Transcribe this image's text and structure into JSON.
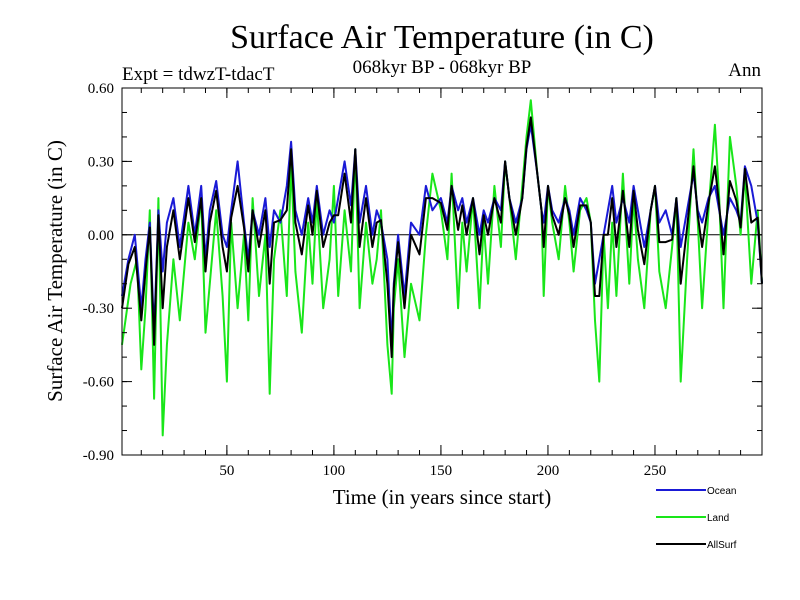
{
  "chart_data": {
    "type": "line",
    "title": "Surface Air Temperature (in C)",
    "subtitle_left": "Expt = tdwzT-tdacT",
    "subtitle_center": "068kyr BP - 068kyr BP",
    "subtitle_right": "Ann",
    "xlabel": "Time (in years since start)",
    "ylabel": "Surface Air Temperature (in C)",
    "xlim": [
      1,
      300
    ],
    "ylim": [
      -0.9,
      0.6
    ],
    "xticks": [
      50,
      100,
      150,
      200,
      250
    ],
    "xtick_labels": [
      "50",
      "100",
      "150",
      "200",
      "250"
    ],
    "yticks": [
      -0.9,
      -0.6,
      -0.3,
      0.0,
      0.3,
      0.6
    ],
    "ytick_labels": [
      "-0.90",
      "-0.60",
      "-0.30",
      "0.00",
      "0.30",
      "0.60"
    ],
    "zero_line": true,
    "legend": [
      {
        "name": "Ocean",
        "color": "#1a1ad6"
      },
      {
        "name": "Land",
        "color": "#19e619"
      },
      {
        "name": "AllSurf",
        "color": "#000000"
      }
    ],
    "series": [
      {
        "name": "Land",
        "color": "#19e619",
        "x": [
          1,
          5,
          8,
          10,
          12,
          14,
          16,
          18,
          20,
          22,
          25,
          28,
          32,
          35,
          38,
          40,
          42,
          45,
          48,
          50,
          52,
          55,
          58,
          60,
          62,
          65,
          68,
          70,
          72,
          75,
          78,
          80,
          82,
          85,
          88,
          90,
          92,
          95,
          98,
          100,
          102,
          105,
          108,
          110,
          112,
          115,
          118,
          120,
          122,
          125,
          127,
          128,
          130,
          133,
          136,
          140,
          143,
          146,
          150,
          153,
          155,
          158,
          160,
          162,
          165,
          168,
          170,
          172,
          175,
          178,
          180,
          182,
          185,
          188,
          190,
          192,
          195,
          197,
          198,
          200,
          202,
          205,
          208,
          210,
          212,
          215,
          218,
          220,
          222,
          224,
          226,
          228,
          230,
          232,
          235,
          238,
          240,
          242,
          245,
          248,
          250,
          252,
          255,
          258,
          260,
          262,
          265,
          268,
          270,
          272,
          275,
          278,
          280,
          282,
          285,
          288,
          290,
          292,
          295,
          298,
          300
        ],
        "values": [
          -0.45,
          -0.2,
          -0.1,
          -0.55,
          -0.3,
          0.1,
          -0.67,
          0.15,
          -0.82,
          -0.45,
          -0.1,
          -0.35,
          0.05,
          -0.1,
          0.15,
          -0.4,
          -0.2,
          0.1,
          -0.25,
          -0.6,
          0.05,
          -0.3,
          0.0,
          -0.35,
          0.15,
          -0.25,
          0.0,
          -0.65,
          -0.1,
          0.1,
          -0.25,
          0.3,
          -0.15,
          -0.4,
          0.05,
          -0.2,
          0.15,
          -0.3,
          -0.1,
          0.2,
          -0.25,
          0.1,
          -0.15,
          0.35,
          -0.3,
          0.05,
          -0.2,
          -0.1,
          0.1,
          -0.45,
          -0.65,
          -0.3,
          -0.1,
          -0.5,
          -0.2,
          -0.35,
          0.0,
          0.25,
          0.1,
          -0.1,
          0.25,
          -0.3,
          0.05,
          -0.15,
          0.15,
          -0.3,
          0.05,
          -0.2,
          0.2,
          -0.05,
          0.3,
          0.15,
          -0.1,
          0.2,
          0.4,
          0.55,
          0.25,
          0.1,
          -0.25,
          0.2,
          0.05,
          -0.1,
          0.2,
          0.05,
          -0.15,
          0.1,
          0.15,
          0.05,
          -0.35,
          -0.6,
          0.0,
          -0.3,
          0.05,
          -0.25,
          0.25,
          -0.2,
          0.15,
          -0.1,
          -0.3,
          0.1,
          0.2,
          -0.15,
          -0.3,
          -0.05,
          0.15,
          -0.6,
          -0.1,
          0.35,
          0.05,
          -0.3,
          0.1,
          0.45,
          0.15,
          -0.3,
          0.4,
          0.2,
          0.0,
          0.25,
          -0.2,
          0.1,
          -0.2
        ]
      },
      {
        "name": "Ocean",
        "color": "#1a1ad6",
        "x": [
          1,
          4,
          7,
          10,
          12,
          14,
          16,
          18,
          20,
          22,
          25,
          28,
          32,
          35,
          38,
          40,
          42,
          45,
          48,
          50,
          52,
          55,
          58,
          60,
          62,
          65,
          68,
          70,
          72,
          75,
          78,
          80,
          82,
          85,
          88,
          90,
          92,
          95,
          98,
          100,
          102,
          105,
          108,
          110,
          112,
          115,
          118,
          120,
          122,
          125,
          127,
          128,
          130,
          133,
          136,
          140,
          143,
          146,
          150,
          153,
          155,
          158,
          160,
          162,
          165,
          168,
          170,
          172,
          175,
          178,
          180,
          182,
          185,
          188,
          190,
          192,
          195,
          197,
          198,
          200,
          202,
          205,
          208,
          210,
          212,
          215,
          218,
          220,
          222,
          224,
          226,
          228,
          230,
          232,
          235,
          238,
          240,
          242,
          245,
          248,
          250,
          252,
          255,
          258,
          260,
          262,
          265,
          268,
          270,
          272,
          275,
          278,
          280,
          282,
          285,
          288,
          290,
          292,
          295,
          298,
          300
        ],
        "values": [
          -0.25,
          -0.1,
          0.0,
          -0.3,
          -0.1,
          0.05,
          -0.4,
          0.1,
          -0.15,
          0.05,
          0.15,
          -0.05,
          0.2,
          0.0,
          0.2,
          -0.1,
          0.1,
          0.22,
          0.0,
          -0.05,
          0.1,
          0.3,
          0.05,
          -0.1,
          0.1,
          0.0,
          0.15,
          -0.05,
          0.1,
          0.05,
          0.2,
          0.38,
          0.1,
          0.0,
          0.15,
          0.05,
          0.2,
          0.0,
          0.1,
          0.05,
          0.15,
          0.3,
          0.12,
          0.35,
          0.05,
          0.2,
          0.0,
          0.1,
          0.05,
          -0.1,
          -0.45,
          -0.2,
          0.0,
          -0.25,
          0.05,
          0.0,
          0.2,
          0.1,
          0.15,
          0.05,
          0.2,
          0.1,
          0.15,
          0.05,
          0.15,
          0.0,
          0.1,
          0.05,
          0.15,
          0.1,
          0.3,
          0.15,
          0.05,
          0.15,
          0.35,
          0.45,
          0.25,
          0.1,
          0.05,
          0.2,
          0.1,
          0.05,
          0.15,
          0.1,
          0.0,
          0.15,
          0.1,
          0.05,
          -0.2,
          -0.1,
          0.0,
          0.1,
          0.2,
          0.05,
          0.15,
          0.05,
          0.2,
          0.1,
          -0.05,
          0.1,
          0.2,
          0.05,
          0.1,
          0.0,
          0.15,
          -0.05,
          0.1,
          0.25,
          0.1,
          0.05,
          0.15,
          0.2,
          0.1,
          0.0,
          0.15,
          0.1,
          0.05,
          0.28,
          0.2,
          0.05,
          -0.2
        ]
      },
      {
        "name": "AllSurf",
        "color": "#000000",
        "x": [
          1,
          4,
          7,
          10,
          12,
          14,
          16,
          18,
          20,
          22,
          25,
          28,
          32,
          35,
          38,
          40,
          42,
          45,
          48,
          50,
          52,
          55,
          58,
          60,
          62,
          65,
          68,
          70,
          72,
          75,
          78,
          80,
          82,
          85,
          88,
          90,
          92,
          95,
          98,
          100,
          102,
          105,
          108,
          110,
          112,
          115,
          118,
          120,
          122,
          125,
          127,
          128,
          130,
          133,
          136,
          140,
          143,
          146,
          150,
          153,
          155,
          158,
          160,
          162,
          165,
          168,
          170,
          172,
          175,
          178,
          180,
          182,
          185,
          188,
          190,
          192,
          195,
          197,
          198,
          200,
          202,
          205,
          208,
          210,
          212,
          215,
          218,
          220,
          222,
          224,
          226,
          228,
          230,
          232,
          235,
          238,
          240,
          242,
          245,
          248,
          250,
          252,
          255,
          258,
          260,
          262,
          265,
          268,
          270,
          272,
          275,
          278,
          280,
          282,
          285,
          288,
          290,
          292,
          295,
          298,
          300
        ],
        "values": [
          -0.3,
          -0.12,
          -0.05,
          -0.35,
          -0.15,
          0.03,
          -0.45,
          0.08,
          -0.3,
          -0.05,
          0.1,
          -0.1,
          0.15,
          -0.03,
          0.15,
          -0.15,
          0.05,
          0.18,
          -0.05,
          -0.15,
          0.07,
          0.2,
          0.03,
          -0.15,
          0.1,
          -0.05,
          0.1,
          -0.2,
          0.05,
          0.06,
          0.1,
          0.35,
          0.05,
          -0.08,
          0.12,
          0.0,
          0.18,
          -0.05,
          0.05,
          0.08,
          0.08,
          0.25,
          0.05,
          0.35,
          -0.05,
          0.15,
          -0.05,
          0.05,
          0.06,
          -0.2,
          -0.5,
          -0.22,
          -0.03,
          -0.3,
          0.0,
          -0.08,
          0.15,
          0.15,
          0.13,
          0.02,
          0.2,
          0.02,
          0.12,
          0.0,
          0.15,
          -0.08,
          0.08,
          0.0,
          0.15,
          0.05,
          0.3,
          0.15,
          0.0,
          0.15,
          0.36,
          0.48,
          0.25,
          0.1,
          -0.05,
          0.2,
          0.08,
          0.0,
          0.15,
          0.08,
          -0.05,
          0.12,
          0.12,
          0.05,
          -0.25,
          -0.25,
          0.0,
          0.0,
          0.15,
          -0.05,
          0.18,
          -0.05,
          0.18,
          0.02,
          -0.12,
          0.1,
          0.2,
          -0.03,
          -0.03,
          -0.02,
          0.15,
          -0.2,
          0.03,
          0.28,
          0.08,
          -0.05,
          0.13,
          0.28,
          0.12,
          -0.08,
          0.22,
          0.14,
          0.03,
          0.27,
          0.05,
          0.07,
          -0.2
        ]
      }
    ]
  }
}
